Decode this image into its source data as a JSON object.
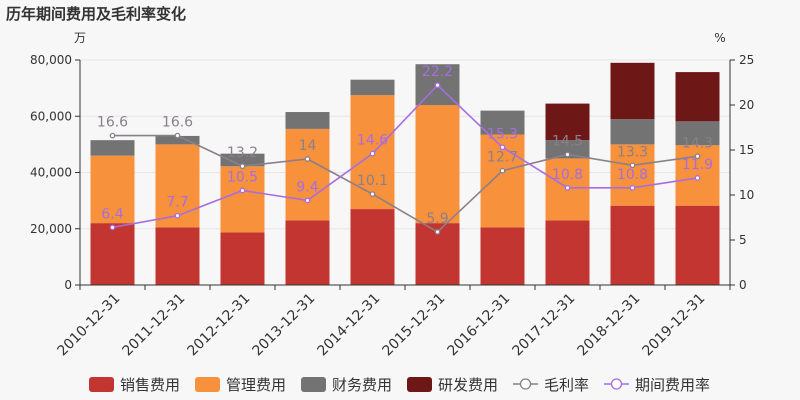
{
  "chart_data": {
    "type": "bar",
    "title": "历年期间费用及毛利率变化",
    "left_unit": "万",
    "right_unit": "%",
    "categories": [
      "2010-12-31",
      "2011-12-31",
      "2012-12-31",
      "2013-12-31",
      "2014-12-31",
      "2015-12-31",
      "2016-12-31",
      "2017-12-31",
      "2018-12-31",
      "2019-12-31"
    ],
    "left_axis": {
      "min": 0,
      "max": 80000,
      "ticks": [
        "0",
        "20,000",
        "40,000",
        "60,000",
        "80,000"
      ],
      "tick_values": [
        0,
        20000,
        40000,
        60000,
        80000
      ]
    },
    "right_axis": {
      "min": 0,
      "max": 25,
      "ticks": [
        "0",
        "5",
        "10",
        "15",
        "20",
        "25"
      ],
      "tick_values": [
        0,
        5,
        10,
        15,
        20,
        25
      ]
    },
    "bar_series": [
      {
        "name": "销售费用",
        "color": "#c23531",
        "values": [
          22000,
          20500,
          18700,
          23000,
          27000,
          22000,
          20500,
          23000,
          28200,
          28200
        ]
      },
      {
        "name": "管理费用",
        "color": "#f7913c",
        "values": [
          24000,
          29500,
          23500,
          32500,
          40500,
          42000,
          33000,
          22000,
          21800,
          21500
        ]
      },
      {
        "name": "财务费用",
        "color": "#737373",
        "values": [
          5500,
          3000,
          4500,
          6000,
          5500,
          14500,
          8500,
          6500,
          9000,
          8500
        ]
      },
      {
        "name": "研发费用",
        "color": "#6e1717",
        "values": [
          0,
          0,
          0,
          0,
          0,
          0,
          0,
          13000,
          20000,
          17500
        ]
      }
    ],
    "line_series": [
      {
        "name": "毛利率",
        "color": "#8a7f8a",
        "values": [
          16.6,
          16.6,
          13.2,
          14,
          10.1,
          5.9,
          12.7,
          14.5,
          13.3,
          14.3
        ],
        "labels": [
          "16.6",
          "16.6",
          "13.2",
          "14",
          "10.1",
          "5.9",
          "12.7",
          "14.5",
          "13.3",
          "14.3"
        ]
      },
      {
        "name": "期间费用率",
        "color": "#a66de0",
        "values": [
          6.4,
          7.7,
          10.5,
          9.4,
          14.6,
          22.2,
          15.3,
          10.8,
          10.8,
          11.9
        ],
        "labels": [
          "6.4",
          "7.7",
          "10.5",
          "9.4",
          "14.6",
          "22.2",
          "15.3",
          "10.8",
          "10.8",
          "11.9"
        ]
      }
    ],
    "grid": true,
    "legend_position": "bottom"
  }
}
